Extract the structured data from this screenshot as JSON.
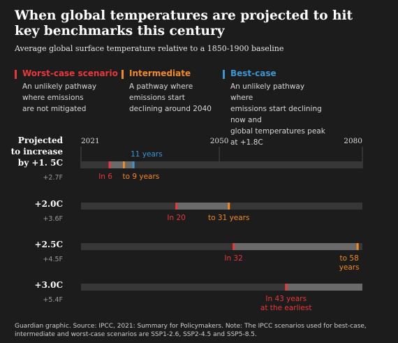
{
  "title": "When global temperatures are projected to hit key benchmarks  this century",
  "subtitle": "Average global surface temperature relative to a 1850-1900 baseline",
  "scenarios": [
    {
      "name": "Worst-case scenario",
      "color": "#e8383b",
      "desc": "An unlikely pathway\nwhere emissions\nare not mitigated"
    },
    {
      "name": "Intermediate",
      "color": "#f08a24",
      "desc": "A pathway where\nemissions start\ndeclining around 2040"
    },
    {
      "name": "Best-case",
      "color": "#3b96d1",
      "desc": "An unlikely pathway where\nemissions start declining now and\nglobal temperatures peak at +1.8C"
    }
  ],
  "footer": "Guardian graphic. Source: IPCC, 2021: Summary for Policymakers. Note: The IPCC scenarios used for best-case, intermediate and worst-case scenarios are SSP1-2.6, SSP2-4.5 and SSP5-8.5.",
  "chart_data": {
    "type": "timeline",
    "row_header": "Projected to increase",
    "x_ticks": [
      2021,
      2050,
      2080
    ],
    "xlim": [
      2021,
      2080
    ],
    "colors": {
      "worst": "#e8383b",
      "intermediate": "#f08a24",
      "best": "#3b96d1",
      "track": "#373737",
      "range": "#6a6a6a"
    },
    "rows": [
      {
        "label": "by +1. 5C",
        "label_lines": [
          "Projected",
          "to increase",
          "by +1. 5C"
        ],
        "fahrenheit": "+2.7F",
        "marks": [
          {
            "scenario": "worst",
            "years": 6,
            "label": "In 6",
            "label_color": "#e8383b",
            "label_pos": "below"
          },
          {
            "scenario": "intermediate",
            "years": 9,
            "label": "to 9 years",
            "label_color": "#f08a24",
            "label_pos": "below"
          },
          {
            "scenario": "best",
            "years": 11,
            "label": "11 years",
            "label_color": "#3b96d1",
            "label_pos": "above"
          }
        ]
      },
      {
        "label": "+2.0C",
        "fahrenheit": "+3.6F",
        "marks": [
          {
            "scenario": "worst",
            "years": 20,
            "label": "In 20",
            "label_color": "#e8383b",
            "label_pos": "below"
          },
          {
            "scenario": "intermediate",
            "years": 31,
            "label": "to 31 years",
            "label_color": "#f08a24",
            "label_pos": "below"
          }
        ]
      },
      {
        "label": "+2.5C",
        "fahrenheit": "+4.5F",
        "marks": [
          {
            "scenario": "worst",
            "years": 32,
            "label": "In 32",
            "label_color": "#e8383b",
            "label_pos": "below"
          },
          {
            "scenario": "intermediate",
            "years": 58,
            "label": "to 58\nyears",
            "label_color": "#f08a24",
            "label_pos": "below",
            "align": "end"
          }
        ]
      },
      {
        "label": "+3.0C",
        "fahrenheit": "+5.4F",
        "marks": [
          {
            "scenario": "worst",
            "years": 43,
            "label": "In 43 years\nat the earliest",
            "label_color": "#e8383b",
            "label_pos": "below",
            "range_to_end": true
          }
        ]
      }
    ]
  }
}
